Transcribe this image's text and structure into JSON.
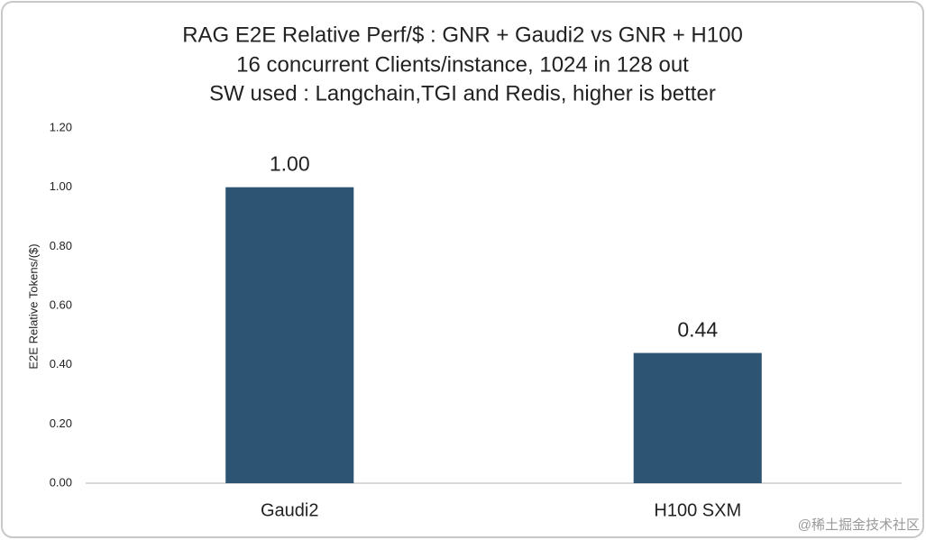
{
  "chart_data": {
    "type": "bar",
    "title": [
      "RAG E2E Relative Perf/$ : GNR + Gaudi2 vs GNR + H100",
      "16 concurrent Clients/instance, 1024 in 128 out",
      "SW used : Langchain,TGI and Redis, higher is better"
    ],
    "y_label": "E2E Relative Tokens/($)",
    "categories": [
      "Gaudi2",
      "H100 SXM"
    ],
    "values": [
      1.0,
      0.44
    ],
    "value_labels": [
      "1.00",
      "0.44"
    ],
    "color": "#2e5473",
    "ylim": [
      0,
      1.2
    ],
    "yticks": [
      {
        "value": 0,
        "label": "0.00"
      },
      {
        "value": 0.2,
        "label": "0.20"
      },
      {
        "value": 0.4,
        "label": "0.40"
      },
      {
        "value": 0.6,
        "label": "0.60"
      },
      {
        "value": 0.8,
        "label": "0.80"
      },
      {
        "value": 1.0,
        "label": "1.00"
      },
      {
        "value": 1.2,
        "label": "1.20"
      }
    ],
    "grid": false,
    "watermark": "@稀土掘金技术社区"
  }
}
